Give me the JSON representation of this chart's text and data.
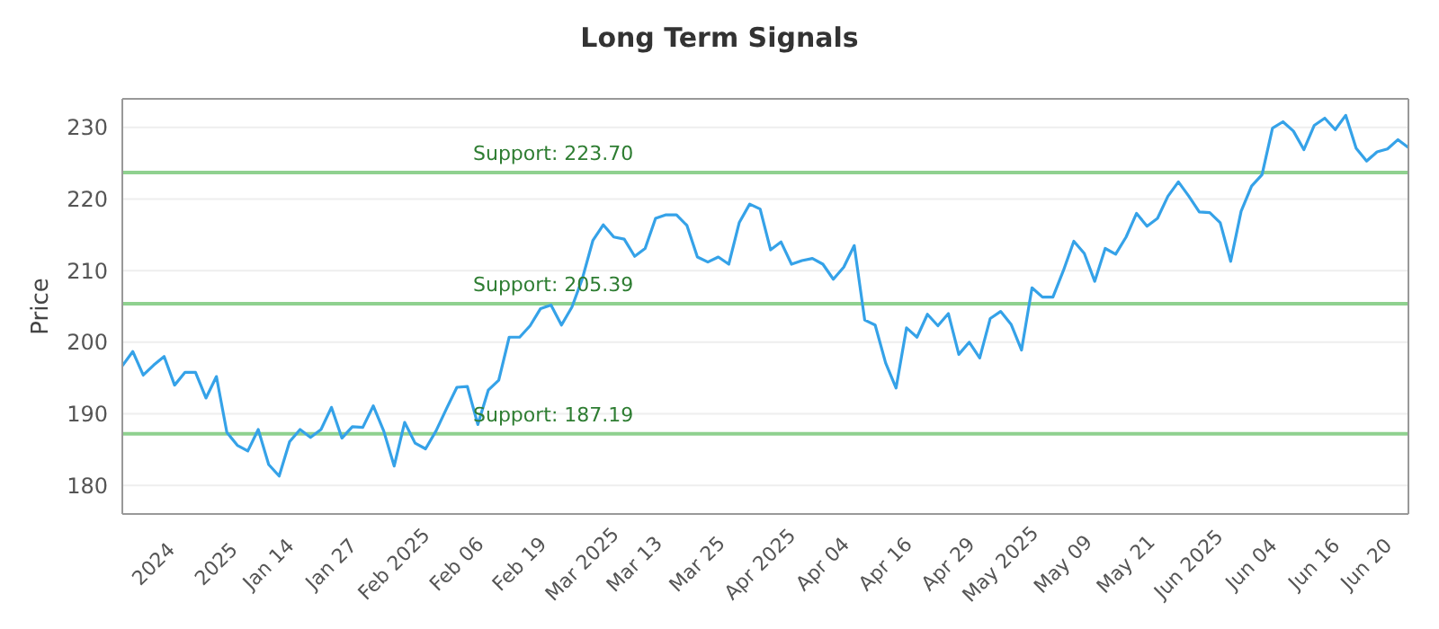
{
  "chart_data": {
    "type": "line",
    "title": "Long Term Signals",
    "ylabel": "Price",
    "categories": [
      null,
      null,
      null,
      "2024",
      null,
      null,
      null,
      null,
      null,
      "2025",
      null,
      null,
      null,
      null,
      "Jan 14",
      null,
      null,
      null,
      null,
      null,
      "Jan 27",
      null,
      null,
      null,
      null,
      null,
      "Feb 2025",
      null,
      null,
      null,
      null,
      null,
      "Feb 06",
      null,
      null,
      null,
      null,
      null,
      "Feb 19",
      null,
      null,
      null,
      null,
      null,
      "Mar 2025",
      null,
      null,
      null,
      null,
      "Mar 13",
      null,
      null,
      null,
      null,
      null,
      "Mar 25",
      null,
      null,
      null,
      null,
      null,
      "Apr 2025",
      null,
      null,
      null,
      null,
      null,
      "Apr 04",
      null,
      null,
      null,
      null,
      null,
      "Apr 16",
      null,
      null,
      null,
      null,
      null,
      "Apr 29",
      null,
      null,
      null,
      null,
      "May 2025",
      null,
      null,
      null,
      null,
      null,
      "May 09",
      null,
      null,
      null,
      null,
      null,
      "May 21",
      null,
      null,
      null,
      null,
      null,
      "Jun 2025",
      null,
      null,
      null,
      null,
      null,
      "Jun 04",
      null,
      null,
      null,
      null,
      null,
      "Jun 16",
      null,
      null,
      null,
      null,
      "Jun 20",
      null,
      null,
      null,
      null
    ],
    "series": [
      {
        "color": "#35a2e8",
        "values": [
          196.7,
          198.7,
          195.4,
          196.8,
          198.0,
          194.0,
          195.8,
          195.8,
          192.2,
          195.2,
          187.4,
          185.6,
          184.8,
          187.8,
          182.9,
          181.3,
          186.1,
          187.8,
          186.7,
          187.8,
          190.9,
          186.6,
          188.2,
          188.1,
          191.1,
          187.6,
          182.7,
          188.8,
          185.9,
          185.1,
          187.6,
          190.7,
          193.7,
          193.8,
          188.5,
          193.3,
          194.7,
          200.7,
          200.7,
          202.3,
          204.7,
          205.2,
          202.4,
          204.9,
          208.9,
          214.2,
          216.4,
          214.7,
          214.4,
          212.0,
          213.1,
          217.3,
          217.8,
          217.8,
          216.3,
          211.9,
          211.2,
          211.9,
          210.9,
          216.7,
          219.3,
          218.6,
          212.9,
          214.0,
          210.9,
          211.4,
          211.7,
          210.9,
          208.8,
          210.5,
          213.5,
          203.1,
          202.4,
          197.1,
          193.6,
          202.0,
          200.7,
          203.9,
          202.3,
          204.0,
          198.3,
          200.0,
          197.8,
          203.3,
          204.3,
          202.5,
          198.9,
          207.6,
          206.3,
          206.3,
          210.0,
          214.1,
          212.4,
          208.5,
          213.1,
          212.3,
          214.7,
          218.0,
          216.2,
          217.3,
          220.4,
          222.4,
          220.4,
          218.2,
          218.1,
          216.7,
          211.3,
          218.3,
          221.8,
          223.4,
          229.9,
          230.8,
          229.5,
          226.9,
          230.3,
          231.3,
          229.7,
          231.7,
          227.1,
          225.3,
          226.6,
          227.0,
          228.3,
          227.2
        ]
      }
    ],
    "ylim": [
      176,
      234
    ],
    "yticks": [
      180,
      190,
      200,
      210,
      220,
      230
    ],
    "grid": "y",
    "marker": "none",
    "line_style": "solid",
    "legend": false,
    "ref_lines": [
      {
        "axis": "y",
        "value": 223.7,
        "label": "Support: 223.70",
        "color": "#8fd18f"
      },
      {
        "axis": "y",
        "value": 205.39,
        "label": "Support: 205.39",
        "color": "#8fd18f"
      },
      {
        "axis": "y",
        "value": 187.19,
        "label": "Support: 187.19",
        "color": "#8fd18f"
      }
    ]
  }
}
